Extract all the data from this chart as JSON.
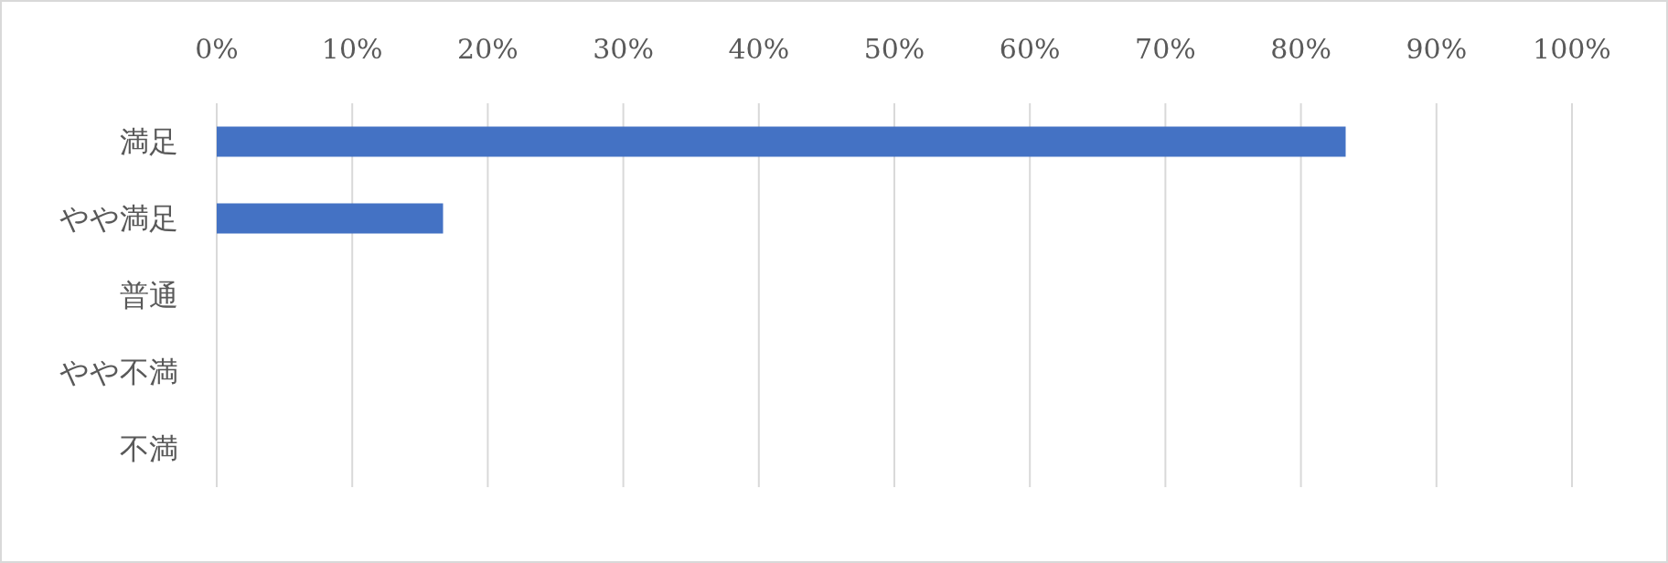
{
  "chart_data": {
    "type": "bar",
    "orientation": "horizontal",
    "categories": [
      "満足",
      "やや満足",
      "普通",
      "やや不満",
      "不満"
    ],
    "values": [
      83.3,
      16.7,
      0,
      0,
      0
    ],
    "color": "#4472c4",
    "xlim": [
      0,
      100
    ],
    "xticks": [
      {
        "value": 0,
        "label": "0%"
      },
      {
        "value": 10,
        "label": "10%"
      },
      {
        "value": 20,
        "label": "20%"
      },
      {
        "value": 30,
        "label": "30%"
      },
      {
        "value": 40,
        "label": "40%"
      },
      {
        "value": 50,
        "label": "50%"
      },
      {
        "value": 60,
        "label": "60%"
      },
      {
        "value": 70,
        "label": "70%"
      },
      {
        "value": 80,
        "label": "80%"
      },
      {
        "value": 90,
        "label": "90%"
      },
      {
        "value": 100,
        "label": "100%"
      }
    ],
    "grid": "x"
  }
}
